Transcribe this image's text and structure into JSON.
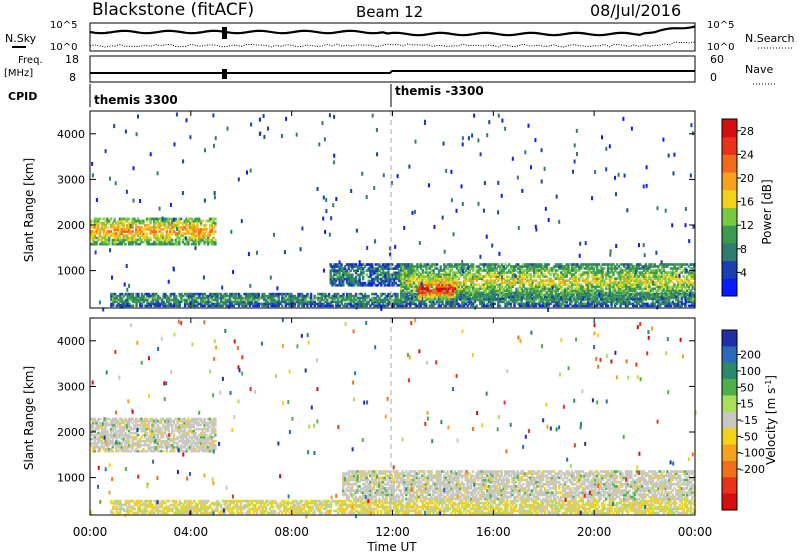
{
  "header": {
    "title": "Blackstone (fitACF)",
    "beam": "Beam 12",
    "date": "08/Jul/2016"
  },
  "strip_panels": {
    "left_labels": {
      "nsky": "N.Sky",
      "freq": "Freq.",
      "freq_unit": "[MHz]",
      "cpid": "CPID"
    },
    "right_labels": {
      "nsearch": "N.Search",
      "nave": "Nave"
    },
    "counts_ticks_left": [
      "10^5",
      "10^0"
    ],
    "counts_ticks_right": [
      "10^5",
      "10^0"
    ],
    "freq_ticks": [
      "18",
      "8"
    ],
    "nave_ticks": [
      "60",
      "0"
    ],
    "cpid_segments": [
      {
        "label": "themis 3300",
        "start_hour": 0
      },
      {
        "label": "themis -3300",
        "start_hour": 12
      }
    ]
  },
  "chart_data": [
    {
      "type": "heatmap",
      "name": "power",
      "ylabel": "Slant Range [km]",
      "xlabel": "Time UT",
      "x_ticks": [
        "00:00",
        "04:00",
        "08:00",
        "12:00",
        "16:00",
        "20:00",
        "00:00"
      ],
      "xlim_hours": [
        0,
        24
      ],
      "ylim": [
        180,
        4500
      ],
      "y_ticks": [
        1000,
        2000,
        3000,
        4000
      ],
      "colorbar": {
        "label": "Power [dB]",
        "ticks": [
          4,
          8,
          12,
          16,
          20,
          24,
          28
        ],
        "range": [
          0,
          30
        ],
        "colors": [
          "#0a1aff",
          "#1a3fb0",
          "#2e7d6e",
          "#3a9a50",
          "#7ac943",
          "#f2d21a",
          "#f6a21e",
          "#f26a1a",
          "#e8321a",
          "#d40d0d"
        ]
      },
      "echo_regions": [
        {
          "t_start": 0.0,
          "t_end": 5.0,
          "r_min": 1550,
          "r_max": 2150,
          "mean_db": 18
        },
        {
          "t_start": 0.8,
          "t_end": 24.0,
          "r_min": 200,
          "r_max": 500,
          "mean_db": 9
        },
        {
          "t_start": 9.5,
          "t_end": 12.8,
          "r_min": 650,
          "r_max": 1150,
          "mean_db": 8
        },
        {
          "t_start": 12.3,
          "t_end": 24.0,
          "r_min": 350,
          "r_max": 1150,
          "mean_db": 14
        },
        {
          "t_start": 13.0,
          "t_end": 14.5,
          "r_min": 350,
          "r_max": 800,
          "mean_db": 24
        }
      ]
    },
    {
      "type": "heatmap",
      "name": "velocity",
      "ylabel": "Slant Range [km]",
      "xlabel": "Time UT",
      "x_ticks": [
        "00:00",
        "04:00",
        "08:00",
        "12:00",
        "16:00",
        "20:00",
        "00:00"
      ],
      "xlim_hours": [
        0,
        24
      ],
      "ylim": [
        180,
        4500
      ],
      "y_ticks": [
        1000,
        2000,
        3000,
        4000
      ],
      "colorbar": {
        "label": "Velocity [m s^-1]",
        "ticks": [
          200,
          100,
          50,
          15,
          -15,
          -50,
          -100,
          -200
        ],
        "range": [
          -250,
          250
        ],
        "colors": [
          "#1f2fa8",
          "#2a6ab8",
          "#2a8a6a",
          "#4fb04a",
          "#a8e05a",
          "#c8c8c0",
          "#f2d21a",
          "#f6a21e",
          "#f2701a",
          "#e8321a",
          "#d40d0d"
        ]
      },
      "echo_regions": [
        {
          "t_start": 0.0,
          "t_end": 5.0,
          "r_min": 1550,
          "r_max": 2300,
          "dominant_velocity": "-15 to 15"
        },
        {
          "t_start": 0.8,
          "t_end": 24.0,
          "r_min": 200,
          "r_max": 500,
          "dominant_velocity": "-50 to 15"
        },
        {
          "t_start": 10.0,
          "t_end": 24.0,
          "r_min": 500,
          "r_max": 1150,
          "dominant_velocity": "-15 to 15"
        }
      ]
    }
  ]
}
